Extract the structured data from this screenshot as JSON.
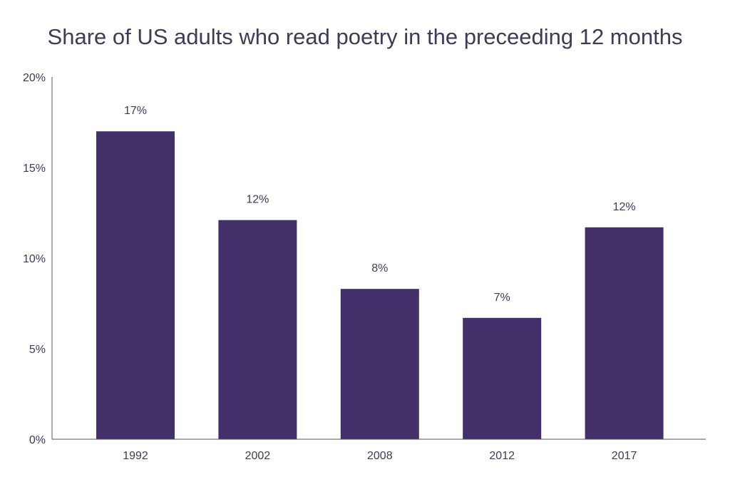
{
  "chart_data": {
    "type": "bar",
    "title": "Share of US adults who read poetry in the preceeding 12 months",
    "xlabel": "",
    "ylabel": "",
    "categories": [
      "1992",
      "2002",
      "2008",
      "2012",
      "2017"
    ],
    "values": [
      17,
      12.1,
      8.3,
      6.7,
      11.7
    ],
    "data_labels": [
      "17%",
      "12%",
      "8%",
      "7%",
      "12%"
    ],
    "ylim": [
      0,
      20
    ],
    "y_ticks": [
      0,
      5,
      10,
      15,
      20
    ],
    "y_tick_labels": [
      "0%",
      "5%",
      "10%",
      "15%",
      "20%"
    ],
    "grid": false,
    "legend": "none",
    "bar_color": "#433068",
    "text_color": "#3f3b57"
  }
}
